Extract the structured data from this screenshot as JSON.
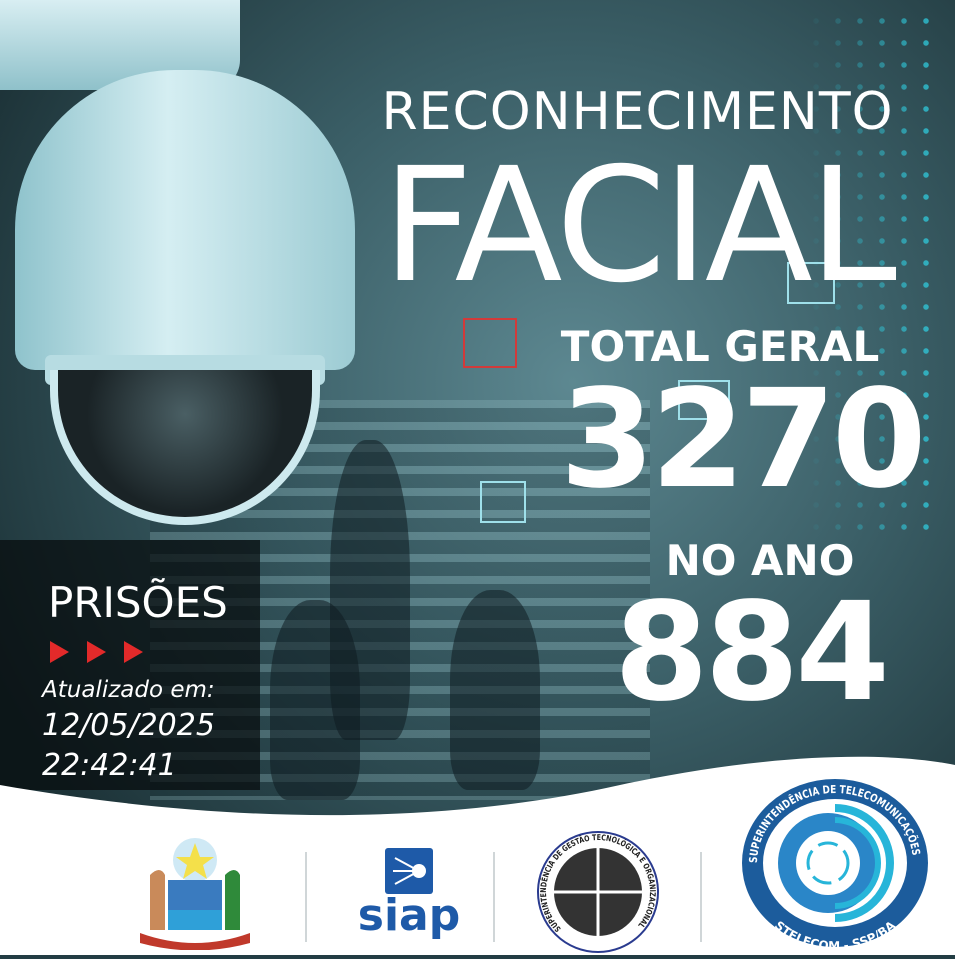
{
  "title": {
    "line1": "RECONHECIMENTO",
    "line2": "FACIAL"
  },
  "stats": {
    "total_label": "TOTAL GERAL",
    "total_value": "3270",
    "year_label": "NO ANO",
    "year_value": "884"
  },
  "arrests": {
    "label": "PRISÕES",
    "updated_label": "Atualizado em:",
    "date": "12/05/2025",
    "time": "22:42:41"
  },
  "logos": {
    "bahia": {
      "name": "ESTADO DA BAHIA"
    },
    "siap": {
      "name": "siap"
    },
    "sgto": {
      "name": "SUPERINTENDÊNCIA DE GESTÃO TECNOLÓGICA E ORGANIZACIONAL",
      "sub": "SSP-BA"
    },
    "stelecom": {
      "name": "SUPERINTENDÊNCIA DE TELECOMUNICAÇÕES",
      "sub": "STELECOM - SSP/BA"
    }
  },
  "colors": {
    "accent_cyan": "#2fd3e6",
    "arrow_red": "#e32a2a",
    "siap_blue": "#1e5aa8",
    "stelecom_blue": "#1c5c9c"
  }
}
